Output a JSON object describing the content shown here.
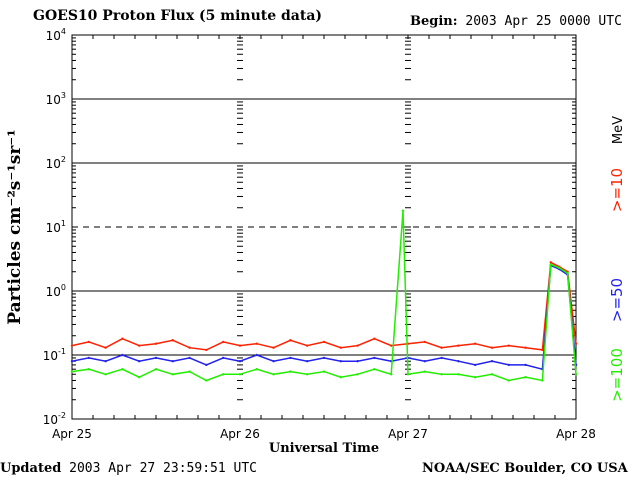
{
  "header": {
    "title": "GOES10 Proton Flux (5 minute data)",
    "begin_label": "Begin:",
    "begin_value": "2003 Apr 25 0000 UTC"
  },
  "footer": {
    "updated_label": "Updated",
    "updated_value": "2003 Apr 27 23:59:51 UTC",
    "credit": "NOAA/SEC Boulder, CO USA"
  },
  "legend": {
    "unit": "MeV",
    "items": [
      {
        "label": ">=10",
        "color": "#ff2200"
      },
      {
        "label": ">=50",
        "color": "#2222ee"
      },
      {
        "label": ">=100",
        "color": "#22ee00"
      }
    ]
  },
  "chart_data": {
    "type": "line",
    "title": "GOES10 Proton Flux (5 minute data)",
    "xlabel": "Universal Time",
    "ylabel": "Particles cm⁻²s⁻¹sr⁻¹",
    "yscale": "log",
    "ylim": [
      0.01,
      10000
    ],
    "xlim": [
      0,
      3
    ],
    "x_ticks": [
      "Apr 25",
      "Apr 26",
      "Apr 27",
      "Apr 28"
    ],
    "y_ticks": [
      {
        "base": "10",
        "exp": "-2"
      },
      {
        "base": "10",
        "exp": "-1"
      },
      {
        "base": "10",
        "exp": "0"
      },
      {
        "base": "10",
        "exp": "1"
      },
      {
        "base": "10",
        "exp": "2"
      },
      {
        "base": "10",
        "exp": "3"
      },
      {
        "base": "10",
        "exp": "4"
      }
    ],
    "threshold_line": 10,
    "series": [
      {
        "name": ">=10 MeV",
        "color": "#ff2200",
        "x": [
          0,
          0.1,
          0.2,
          0.3,
          0.4,
          0.5,
          0.6,
          0.7,
          0.8,
          0.9,
          1.0,
          1.1,
          1.2,
          1.3,
          1.4,
          1.5,
          1.6,
          1.7,
          1.8,
          1.9,
          2.0,
          2.1,
          2.2,
          2.3,
          2.4,
          2.5,
          2.6,
          2.7,
          2.8,
          2.85,
          2.9,
          2.95,
          3.0
        ],
        "y": [
          0.14,
          0.16,
          0.13,
          0.18,
          0.14,
          0.15,
          0.17,
          0.13,
          0.12,
          0.16,
          0.14,
          0.15,
          0.13,
          0.17,
          0.14,
          0.16,
          0.13,
          0.14,
          0.18,
          0.14,
          0.15,
          0.16,
          0.13,
          0.14,
          0.15,
          0.13,
          0.14,
          0.13,
          0.12,
          2.8,
          2.4,
          2.0,
          0.15
        ]
      },
      {
        "name": ">=50 MeV",
        "color": "#2222ee",
        "x": [
          0,
          0.1,
          0.2,
          0.3,
          0.4,
          0.5,
          0.6,
          0.7,
          0.8,
          0.9,
          1.0,
          1.1,
          1.2,
          1.3,
          1.4,
          1.5,
          1.6,
          1.7,
          1.8,
          1.9,
          2.0,
          2.1,
          2.2,
          2.3,
          2.4,
          2.5,
          2.6,
          2.7,
          2.8,
          2.85,
          2.9,
          2.95,
          3.0
        ],
        "y": [
          0.08,
          0.09,
          0.08,
          0.1,
          0.08,
          0.09,
          0.08,
          0.09,
          0.07,
          0.09,
          0.08,
          0.1,
          0.08,
          0.09,
          0.08,
          0.09,
          0.08,
          0.08,
          0.09,
          0.08,
          0.09,
          0.08,
          0.09,
          0.08,
          0.07,
          0.08,
          0.07,
          0.07,
          0.06,
          2.5,
          2.2,
          1.8,
          0.07
        ]
      },
      {
        "name": ">=100 MeV",
        "color": "#22ee00",
        "x": [
          0,
          0.1,
          0.2,
          0.3,
          0.4,
          0.5,
          0.6,
          0.7,
          0.8,
          0.9,
          1.0,
          1.1,
          1.2,
          1.3,
          1.4,
          1.5,
          1.6,
          1.7,
          1.8,
          1.9,
          1.97,
          2.0,
          2.1,
          2.2,
          2.3,
          2.4,
          2.5,
          2.6,
          2.7,
          2.8,
          2.85,
          2.9,
          2.95,
          3.0
        ],
        "y": [
          0.055,
          0.06,
          0.05,
          0.06,
          0.045,
          0.06,
          0.05,
          0.055,
          0.04,
          0.05,
          0.05,
          0.06,
          0.05,
          0.055,
          0.05,
          0.055,
          0.045,
          0.05,
          0.06,
          0.05,
          18,
          0.05,
          0.055,
          0.05,
          0.05,
          0.045,
          0.05,
          0.04,
          0.045,
          0.04,
          2.6,
          2.3,
          1.9,
          0.05
        ]
      }
    ]
  }
}
